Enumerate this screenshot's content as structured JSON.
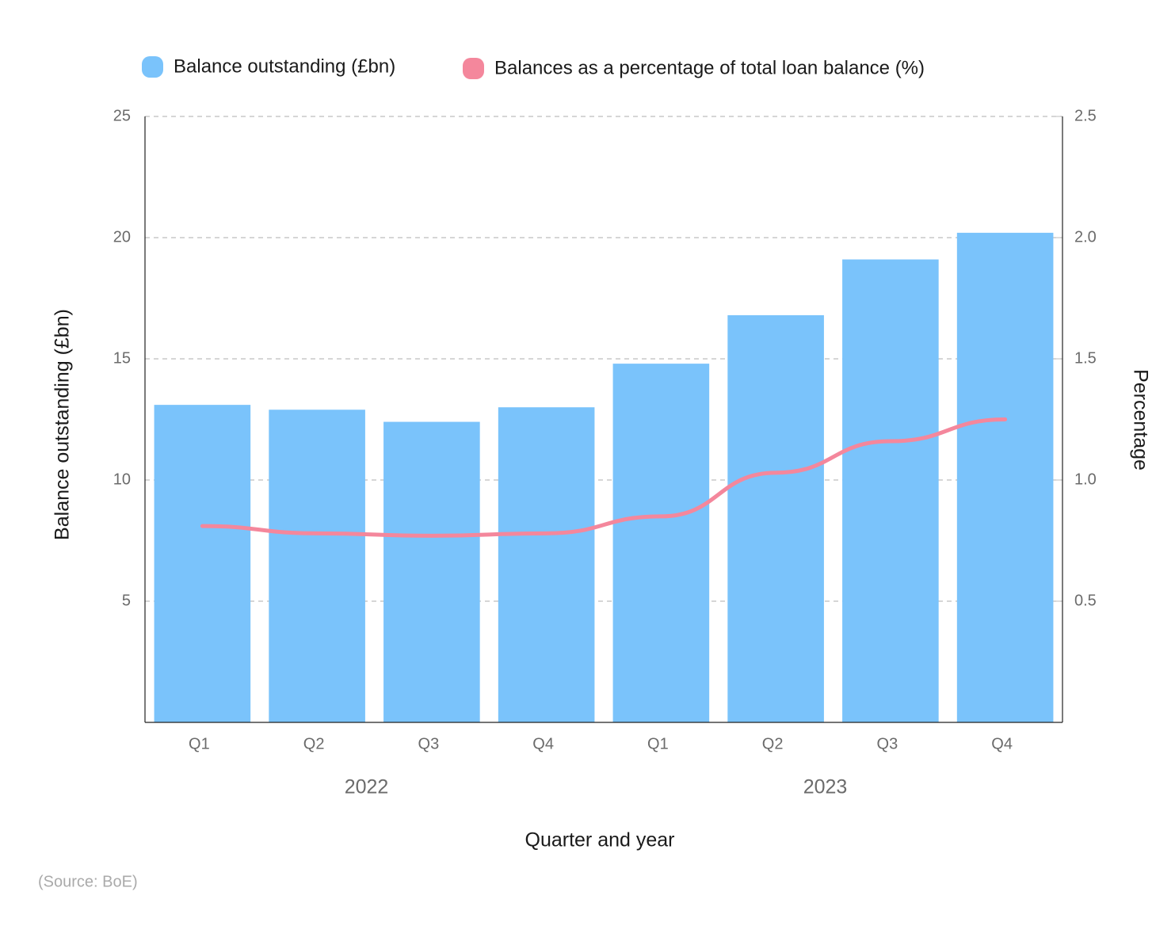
{
  "chart_data": {
    "type": "bar_line",
    "x_title": "Quarter and year",
    "y_title": "Balance outstanding (£bn)",
    "y2_title": "Percentage",
    "source": "(Source: BoE)",
    "categories": [
      "Q1",
      "Q2",
      "Q3",
      "Q4",
      "Q1",
      "Q2",
      "Q3",
      "Q4"
    ],
    "x_groups": [
      "2022",
      "2023"
    ],
    "series": [
      {
        "name": "Balance outstanding (£bn)",
        "color": "#7ac3fb",
        "type": "bar",
        "values": [
          13.1,
          12.9,
          12.4,
          13.0,
          14.8,
          16.8,
          19.1,
          20.2
        ]
      },
      {
        "name": "Balances as a percentage of total loan balance (%)",
        "color": "#f4879c",
        "type": "line",
        "axis": "y2",
        "values": [
          0.81,
          0.78,
          0.77,
          0.78,
          0.85,
          1.03,
          1.16,
          1.25
        ]
      }
    ],
    "ylim": [
      0,
      25
    ],
    "yticks": [
      5,
      10,
      15,
      20,
      25
    ],
    "y2lim": [
      0,
      2.5
    ],
    "y2ticks": [
      0.5,
      {
        "value": 1,
        "label": "1.0"
      },
      1.5,
      {
        "value": 2,
        "label": "2.0"
      },
      2.5
    ],
    "grid": true,
    "legend": "top"
  }
}
